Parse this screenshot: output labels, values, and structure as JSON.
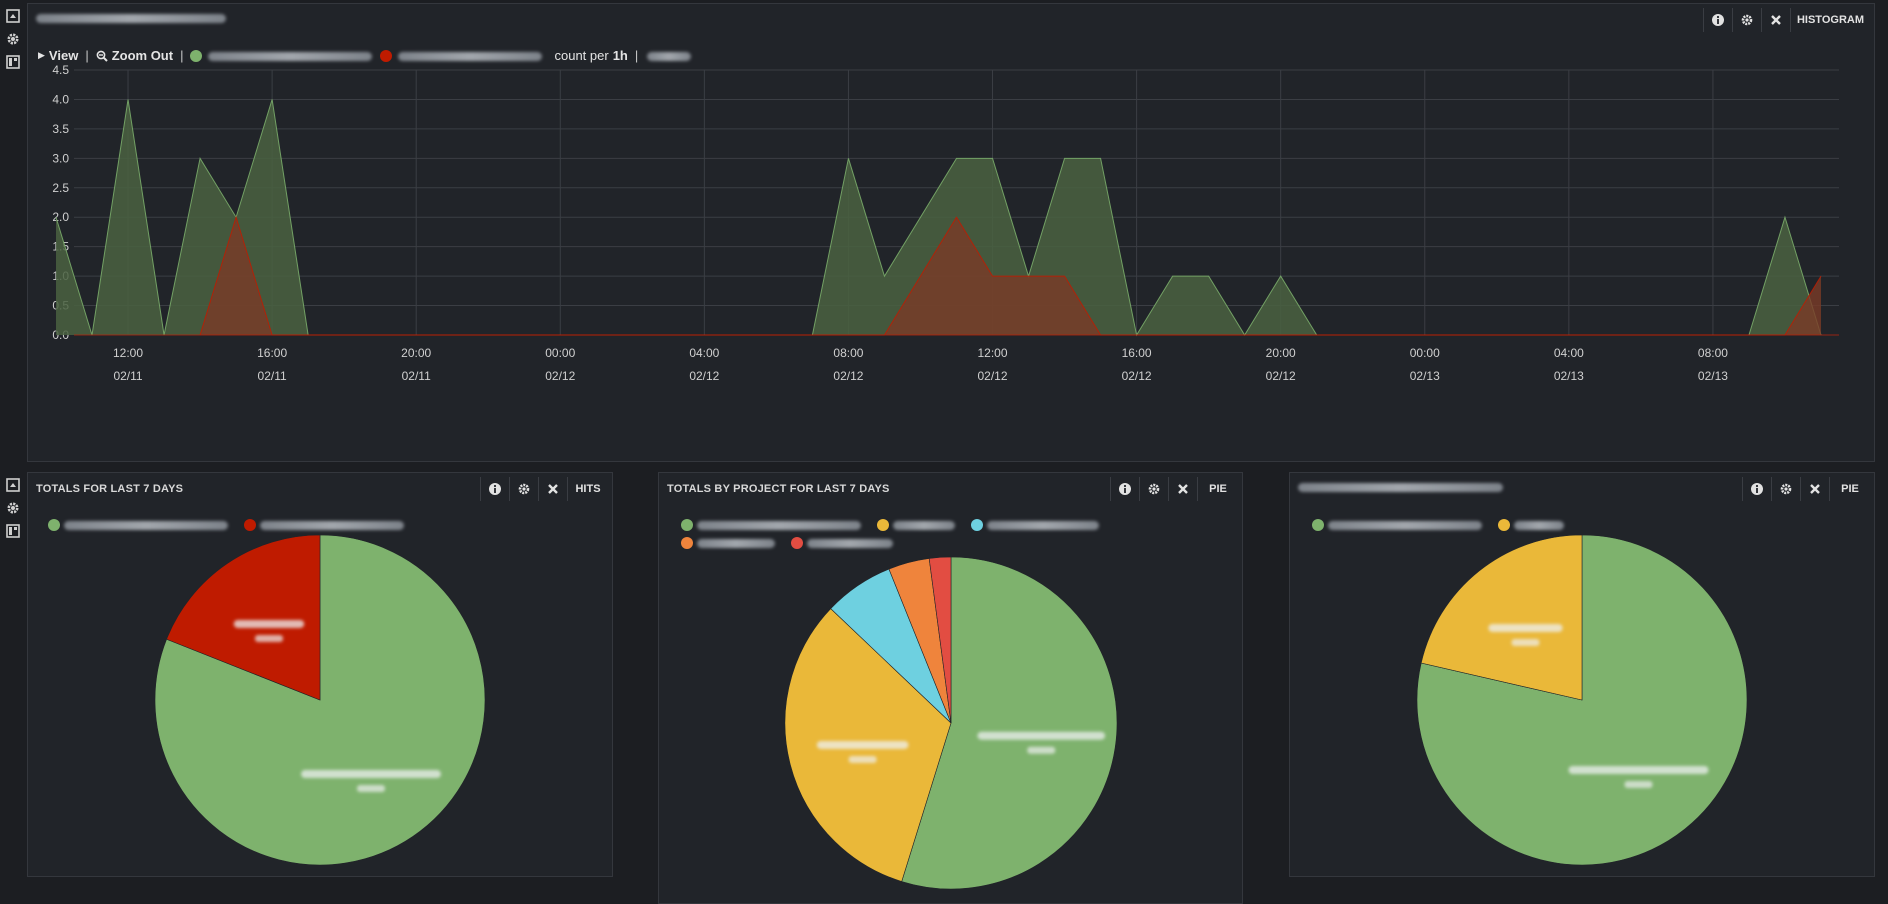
{
  "colors": {
    "green": "#7eb26d",
    "green_fill": "#4a6241",
    "red": "#bf1b00",
    "red_fill": "#7a3b27",
    "yellow": "#eab839",
    "cyan": "#6ed0e0",
    "orange": "#ef843c",
    "red2": "#e24d42"
  },
  "histogram": {
    "toolbar": {
      "info_icon": "info-icon",
      "settings_icon": "gear-icon",
      "close_icon": "close-icon",
      "type_label": "HISTOGRAM"
    },
    "controls": {
      "view_label": "View",
      "zoom_out_label": "Zoom Out",
      "count_prefix": "count per",
      "interval": "1h"
    }
  },
  "panels": {
    "hits": {
      "title": "TOTALS FOR LAST 7 DAYS",
      "type_label": "HITS"
    },
    "project": {
      "title": "TOTALS BY PROJECT FOR LAST 7 DAYS",
      "type_label": "PIE"
    },
    "third": {
      "type_label": "PIE"
    }
  },
  "chart_data": [
    {
      "type": "area",
      "ylim": [
        0,
        4.5
      ],
      "y_ticks": [
        "0.0",
        "0.5",
        "1.0",
        "1.5",
        "2.0",
        "2.5",
        "3.0",
        "3.5",
        "4.0",
        "4.5"
      ],
      "x_ticks": [
        {
          "time": "12:00",
          "date": "02/11"
        },
        {
          "time": "16:00",
          "date": "02/11"
        },
        {
          "time": "20:00",
          "date": "02/11"
        },
        {
          "time": "00:00",
          "date": "02/12"
        },
        {
          "time": "04:00",
          "date": "02/12"
        },
        {
          "time": "08:00",
          "date": "02/12"
        },
        {
          "time": "12:00",
          "date": "02/12"
        },
        {
          "time": "16:00",
          "date": "02/12"
        },
        {
          "time": "20:00",
          "date": "02/12"
        },
        {
          "time": "00:00",
          "date": "02/13"
        },
        {
          "time": "04:00",
          "date": "02/13"
        },
        {
          "time": "08:00",
          "date": "02/13"
        }
      ],
      "x_hour_range": [
        10.5,
        59.5
      ],
      "series": [
        {
          "color_key": "green",
          "points": [
            [
              10,
              2
            ],
            [
              11,
              0
            ],
            [
              12,
              4
            ],
            [
              13,
              0
            ],
            [
              14,
              3
            ],
            [
              15,
              2
            ],
            [
              16,
              4
            ],
            [
              17,
              0
            ],
            [
              18,
              0
            ],
            [
              30,
              0
            ],
            [
              31,
              0
            ],
            [
              32,
              3
            ],
            [
              33,
              1
            ],
            [
              34,
              2
            ],
            [
              35,
              3
            ],
            [
              36,
              3
            ],
            [
              37,
              1
            ],
            [
              38,
              3
            ],
            [
              39,
              3
            ],
            [
              40,
              0
            ],
            [
              41,
              1
            ],
            [
              42,
              1
            ],
            [
              43,
              0
            ],
            [
              44,
              1
            ],
            [
              45,
              0
            ],
            [
              57,
              0
            ],
            [
              58,
              2
            ],
            [
              59,
              0
            ]
          ]
        },
        {
          "color_key": "red",
          "points": [
            [
              14,
              0
            ],
            [
              15,
              2
            ],
            [
              16,
              0
            ],
            [
              32,
              0
            ],
            [
              33,
              0
            ],
            [
              34,
              1
            ],
            [
              35,
              2
            ],
            [
              36,
              1
            ],
            [
              37,
              1
            ],
            [
              38,
              1
            ],
            [
              39,
              0
            ],
            [
              58,
              0
            ],
            [
              59,
              1
            ]
          ]
        }
      ]
    },
    {
      "type": "pie",
      "slices": [
        {
          "value": 0.81,
          "color_key": "green"
        },
        {
          "value": 0.19,
          "color_key": "red"
        }
      ]
    },
    {
      "type": "pie",
      "slices": [
        {
          "value": 0.548,
          "color_key": "green"
        },
        {
          "value": 0.323,
          "color_key": "yellow"
        },
        {
          "value": 0.068,
          "color_key": "cyan"
        },
        {
          "value": 0.04,
          "color_key": "orange"
        },
        {
          "value": 0.021,
          "color_key": "red2"
        }
      ]
    },
    {
      "type": "pie",
      "slices": [
        {
          "value": 0.786,
          "color_key": "green"
        },
        {
          "value": 0.214,
          "color_key": "yellow"
        }
      ]
    }
  ]
}
